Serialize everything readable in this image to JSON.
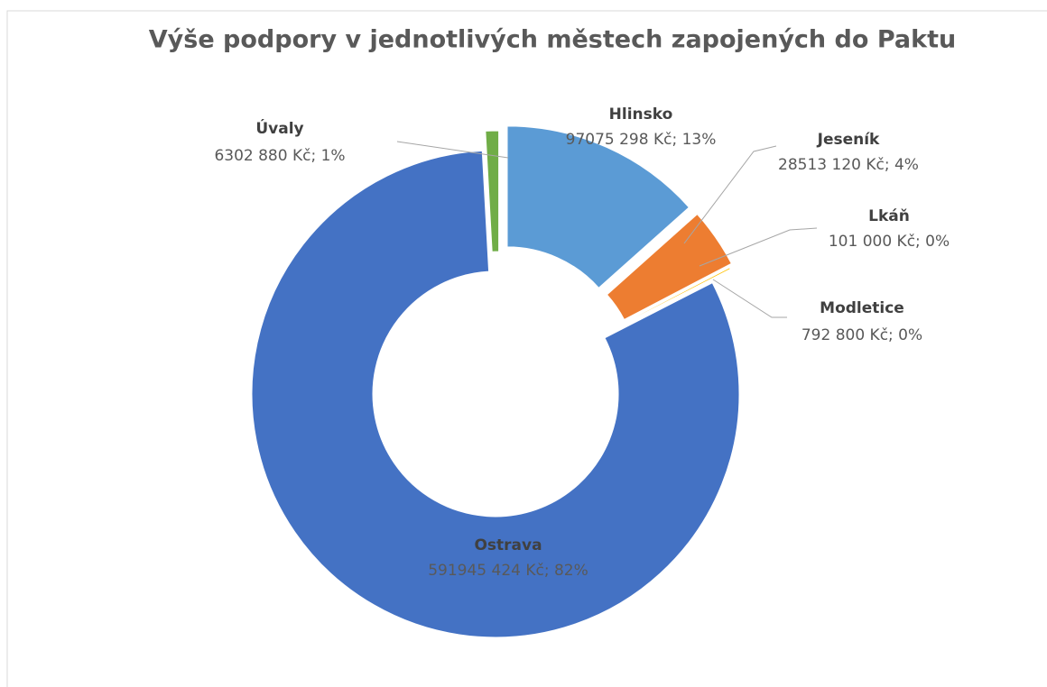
{
  "chart_data": {
    "type": "donut",
    "title": "Výše podpory v jednotlivých městech zapojených do Paktu",
    "categories": [
      "Hlinsko",
      "Jeseník",
      "Lkáň",
      "Modletice",
      "Ostrava",
      "Úvaly"
    ],
    "values": [
      97075298,
      28513120,
      101000,
      792800,
      591945424,
      6302880
    ],
    "value_labels": [
      "97075 298 Kč; 13%",
      "28513 120 Kč; 4%",
      "101 000 Kč; 0%",
      "792 800 Kč; 0%",
      "591945 424 Kč; 82%",
      "6302 880 Kč; 1%"
    ],
    "colors": [
      "#5b9bd5",
      "#ed7d31",
      "#a5a5a5",
      "#ffc000",
      "#4472c4",
      "#70ad47"
    ]
  }
}
